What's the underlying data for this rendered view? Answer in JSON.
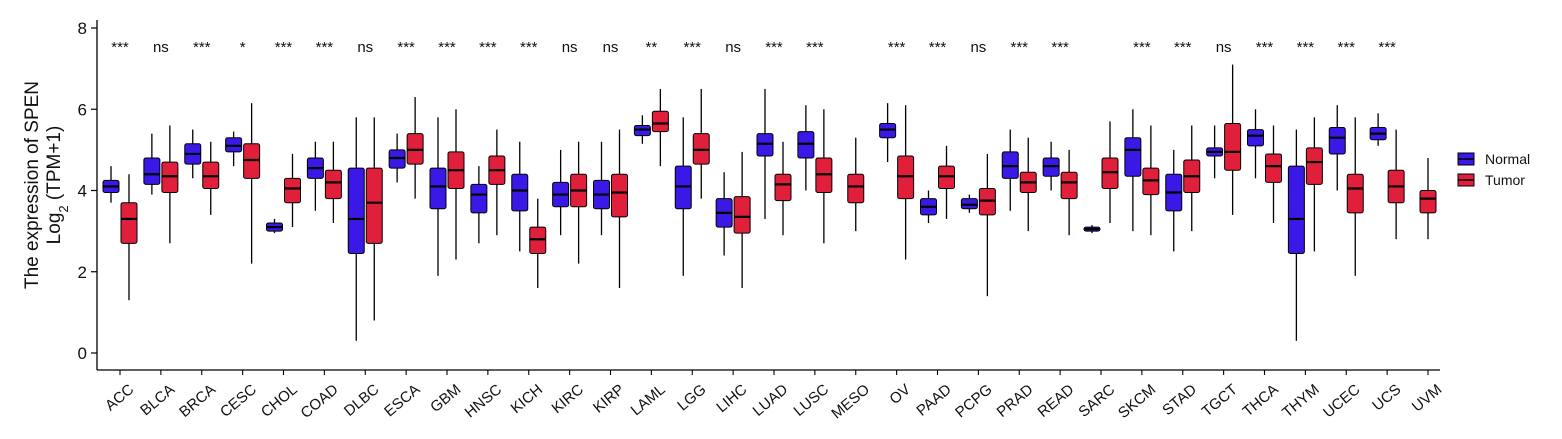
{
  "chart_data": {
    "type": "box",
    "ylabel_line1": "The expression of SPEN",
    "ylabel_line2_prefix": "Log",
    "ylabel_line2_sub": "2",
    "ylabel_line2_suffix": " (TPM+1)",
    "ylim": [
      0,
      8
    ],
    "yticks": [
      "0",
      "2",
      "4",
      "6",
      "8"
    ],
    "legend": {
      "position": "right",
      "entries": [
        {
          "name": "Normal",
          "color": "#3a19e6"
        },
        {
          "name": "Tumor",
          "color": "#e0203a"
        }
      ]
    },
    "categories": [
      "ACC",
      "BLCA",
      "BRCA",
      "CESC",
      "CHOL",
      "COAD",
      "DLBC",
      "ESCA",
      "GBM",
      "HNSC",
      "KICH",
      "KIRC",
      "KIRP",
      "LAML",
      "LGG",
      "LIHC",
      "LUAD",
      "LUSC",
      "MESO",
      "OV",
      "PAAD",
      "PCPG",
      "PRAD",
      "READ",
      "SARC",
      "SKCM",
      "STAD",
      "TGCT",
      "THCA",
      "THYM",
      "UCEC",
      "UCS",
      "UVM"
    ],
    "significance": [
      "***",
      "ns",
      "***",
      "*",
      "***",
      "***",
      "ns",
      "***",
      "***",
      "***",
      "***",
      "ns",
      "ns",
      "**",
      "***",
      "ns",
      "***",
      "***",
      "",
      "***",
      "***",
      "ns",
      "***",
      "***",
      "",
      "***",
      "***",
      "ns",
      "***",
      "***",
      "***",
      "***",
      ""
    ],
    "normal": [
      {
        "min": 3.7,
        "q1": 3.95,
        "median": 4.1,
        "q3": 4.25,
        "max": 4.6
      },
      {
        "min": 3.9,
        "q1": 4.15,
        "median": 4.4,
        "q3": 4.8,
        "max": 5.4
      },
      {
        "min": 4.3,
        "q1": 4.65,
        "median": 4.9,
        "q3": 5.15,
        "max": 5.5
      },
      {
        "min": 4.6,
        "q1": 4.95,
        "median": 5.1,
        "q3": 5.3,
        "max": 5.45
      },
      {
        "min": 2.95,
        "q1": 3.0,
        "median": 3.1,
        "q3": 3.2,
        "max": 3.3
      },
      {
        "min": 3.5,
        "q1": 4.3,
        "median": 4.55,
        "q3": 4.8,
        "max": 5.2
      },
      {
        "min": 0.3,
        "q1": 2.45,
        "median": 3.3,
        "q3": 4.55,
        "max": 5.8
      },
      {
        "min": 4.2,
        "q1": 4.55,
        "median": 4.8,
        "q3": 5.0,
        "max": 5.4
      },
      {
        "min": 1.9,
        "q1": 3.55,
        "median": 4.1,
        "q3": 4.55,
        "max": 5.8
      },
      {
        "min": 2.7,
        "q1": 3.45,
        "median": 3.9,
        "q3": 4.15,
        "max": 4.6
      },
      {
        "min": 2.5,
        "q1": 3.5,
        "median": 4.0,
        "q3": 4.4,
        "max": 5.2
      },
      {
        "min": 2.9,
        "q1": 3.6,
        "median": 3.9,
        "q3": 4.2,
        "max": 5.0
      },
      {
        "min": 2.9,
        "q1": 3.55,
        "median": 3.9,
        "q3": 4.25,
        "max": 5.2
      },
      {
        "min": 5.15,
        "q1": 5.35,
        "median": 5.5,
        "q3": 5.6,
        "max": 5.85
      },
      {
        "min": 1.9,
        "q1": 3.55,
        "median": 4.1,
        "q3": 4.6,
        "max": 5.8
      },
      {
        "min": 2.4,
        "q1": 3.1,
        "median": 3.45,
        "q3": 3.8,
        "max": 4.45
      },
      {
        "min": 3.3,
        "q1": 4.85,
        "median": 5.15,
        "q3": 5.4,
        "max": 6.5
      },
      {
        "min": 4.0,
        "q1": 4.8,
        "median": 5.15,
        "q3": 5.45,
        "max": 6.1
      },
      null,
      {
        "min": 4.7,
        "q1": 5.3,
        "median": 5.5,
        "q3": 5.65,
        "max": 6.15
      },
      {
        "min": 3.2,
        "q1": 3.4,
        "median": 3.6,
        "q3": 3.8,
        "max": 4.0
      },
      {
        "min": 3.45,
        "q1": 3.55,
        "median": 3.65,
        "q3": 3.8,
        "max": 3.9
      },
      {
        "min": 3.5,
        "q1": 4.3,
        "median": 4.6,
        "q3": 4.95,
        "max": 5.5
      },
      {
        "min": 4.0,
        "q1": 4.35,
        "median": 4.6,
        "q3": 4.8,
        "max": 5.2
      },
      {
        "min": 2.95,
        "q1": 3.0,
        "median": 3.05,
        "q3": 3.1,
        "max": 3.15
      },
      {
        "min": 3.0,
        "q1": 4.35,
        "median": 5.0,
        "q3": 5.3,
        "max": 6.0
      },
      {
        "min": 2.5,
        "q1": 3.5,
        "median": 3.95,
        "q3": 4.4,
        "max": 5.0
      },
      {
        "min": 4.3,
        "q1": 4.85,
        "median": 4.95,
        "q3": 5.05,
        "max": 5.6
      },
      {
        "min": 4.3,
        "q1": 5.1,
        "median": 5.35,
        "q3": 5.5,
        "max": 6.0
      },
      {
        "min": 0.3,
        "q1": 2.45,
        "median": 3.3,
        "q3": 4.6,
        "max": 5.5
      },
      {
        "min": 4.0,
        "q1": 4.9,
        "median": 5.3,
        "q3": 5.55,
        "max": 6.1
      },
      {
        "min": 5.1,
        "q1": 5.25,
        "median": 5.4,
        "q3": 5.55,
        "max": 5.9
      },
      null
    ],
    "tumor": [
      {
        "min": 1.3,
        "q1": 2.7,
        "median": 3.3,
        "q3": 3.7,
        "max": 4.4
      },
      {
        "min": 2.7,
        "q1": 3.95,
        "median": 4.35,
        "q3": 4.7,
        "max": 5.6
      },
      {
        "min": 3.4,
        "q1": 4.05,
        "median": 4.35,
        "q3": 4.7,
        "max": 5.2
      },
      {
        "min": 2.2,
        "q1": 4.3,
        "median": 4.75,
        "q3": 5.15,
        "max": 6.15
      },
      {
        "min": 3.1,
        "q1": 3.7,
        "median": 4.05,
        "q3": 4.3,
        "max": 4.9
      },
      {
        "min": 3.2,
        "q1": 3.8,
        "median": 4.2,
        "q3": 4.5,
        "max": 5.2
      },
      {
        "min": 0.8,
        "q1": 2.7,
        "median": 3.7,
        "q3": 4.55,
        "max": 5.8
      },
      {
        "min": 3.8,
        "q1": 4.65,
        "median": 5.0,
        "q3": 5.4,
        "max": 6.3
      },
      {
        "min": 2.3,
        "q1": 4.05,
        "median": 4.5,
        "q3": 4.95,
        "max": 6.0
      },
      {
        "min": 2.9,
        "q1": 4.15,
        "median": 4.5,
        "q3": 4.85,
        "max": 5.5
      },
      {
        "min": 1.6,
        "q1": 2.45,
        "median": 2.8,
        "q3": 3.1,
        "max": 3.8
      },
      {
        "min": 2.2,
        "q1": 3.6,
        "median": 4.0,
        "q3": 4.4,
        "max": 5.2
      },
      {
        "min": 1.6,
        "q1": 3.35,
        "median": 3.95,
        "q3": 4.4,
        "max": 5.5
      },
      {
        "min": 4.6,
        "q1": 5.45,
        "median": 5.65,
        "q3": 5.95,
        "max": 6.5
      },
      {
        "min": 3.8,
        "q1": 4.65,
        "median": 5.0,
        "q3": 5.4,
        "max": 6.5
      },
      {
        "min": 1.6,
        "q1": 2.95,
        "median": 3.35,
        "q3": 3.85,
        "max": 4.95
      },
      {
        "min": 2.9,
        "q1": 3.75,
        "median": 4.15,
        "q3": 4.4,
        "max": 5.2
      },
      {
        "min": 2.7,
        "q1": 3.95,
        "median": 4.4,
        "q3": 4.8,
        "max": 6.0
      },
      {
        "min": 3.0,
        "q1": 3.7,
        "median": 4.1,
        "q3": 4.4,
        "max": 5.3
      },
      {
        "min": 2.3,
        "q1": 3.8,
        "median": 4.35,
        "q3": 4.85,
        "max": 6.1
      },
      {
        "min": 3.3,
        "q1": 4.05,
        "median": 4.35,
        "q3": 4.6,
        "max": 5.1
      },
      {
        "min": 1.4,
        "q1": 3.4,
        "median": 3.75,
        "q3": 4.05,
        "max": 4.9
      },
      {
        "min": 3.0,
        "q1": 3.95,
        "median": 4.2,
        "q3": 4.45,
        "max": 5.3
      },
      {
        "min": 2.9,
        "q1": 3.8,
        "median": 4.2,
        "q3": 4.45,
        "max": 5.0
      },
      {
        "min": 3.2,
        "q1": 4.05,
        "median": 4.45,
        "q3": 4.8,
        "max": 5.7
      },
      {
        "min": 2.9,
        "q1": 3.9,
        "median": 4.25,
        "q3": 4.55,
        "max": 5.6
      },
      {
        "min": 3.0,
        "q1": 3.95,
        "median": 4.35,
        "q3": 4.75,
        "max": 5.6
      },
      {
        "min": 3.4,
        "q1": 4.5,
        "median": 4.95,
        "q3": 5.65,
        "max": 7.1
      },
      {
        "min": 3.2,
        "q1": 4.2,
        "median": 4.6,
        "q3": 4.9,
        "max": 5.6
      },
      {
        "min": 2.5,
        "q1": 4.15,
        "median": 4.7,
        "q3": 5.05,
        "max": 5.8
      },
      {
        "min": 1.9,
        "q1": 3.45,
        "median": 4.05,
        "q3": 4.4,
        "max": 5.8
      },
      {
        "min": 2.8,
        "q1": 3.7,
        "median": 4.1,
        "q3": 4.5,
        "max": 5.5
      },
      {
        "min": 2.8,
        "q1": 3.45,
        "median": 3.8,
        "q3": 4.0,
        "max": 4.8
      }
    ]
  }
}
